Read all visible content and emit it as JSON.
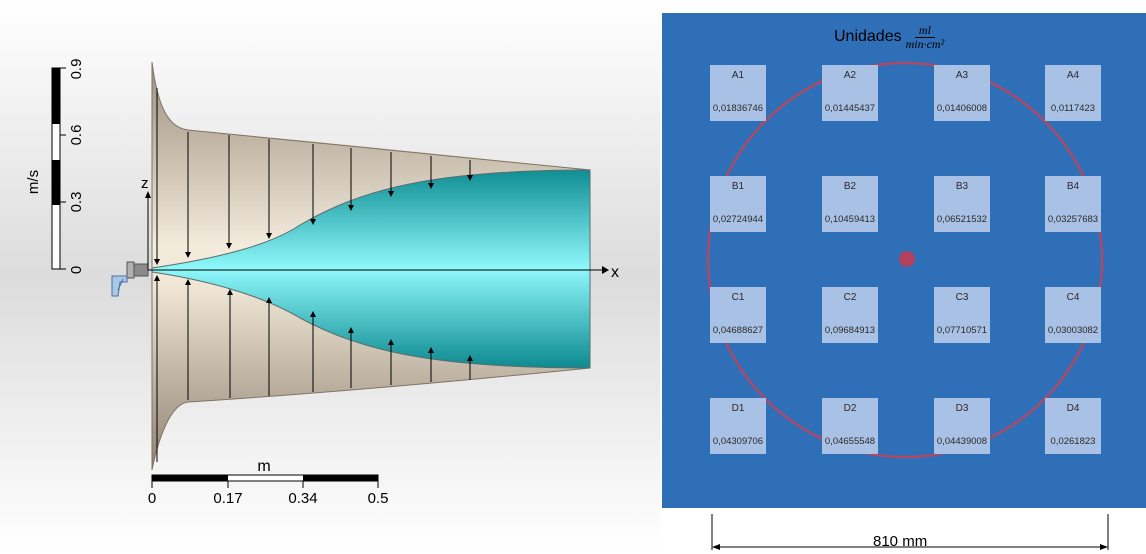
{
  "left_diagram": {
    "velocity_scale": {
      "unit_label": "m/s",
      "ticks": [
        "0",
        "0.3",
        "0.6",
        "0.9"
      ]
    },
    "length_scale": {
      "unit_label": "m",
      "ticks": [
        "0",
        "0.17",
        "0.34",
        "0.5"
      ]
    },
    "axes": {
      "x_label": "x",
      "z_label": "z"
    }
  },
  "right_diagram": {
    "units_prefix": "Unidades",
    "units_numerator": "ml",
    "units_denominator": "min·cm²",
    "dimension_label": "810 mm",
    "colors": {
      "background": "#2e6fb7",
      "square": "#a9c1e4",
      "circle": "#c0445a"
    },
    "grid": [
      [
        {
          "id": "A1",
          "value": "0,01836746"
        },
        {
          "id": "A2",
          "value": "0,01445437"
        },
        {
          "id": "A3",
          "value": "0,01406008"
        },
        {
          "id": "A4",
          "value": "0,0117423"
        }
      ],
      [
        {
          "id": "B1",
          "value": "0,02724944"
        },
        {
          "id": "B2",
          "value": "0,10459413"
        },
        {
          "id": "B3",
          "value": "0,06521532"
        },
        {
          "id": "B4",
          "value": "0,03257683"
        }
      ],
      [
        {
          "id": "C1",
          "value": "0,04688627"
        },
        {
          "id": "C2",
          "value": "0,09684913"
        },
        {
          "id": "C3",
          "value": "0,07710571"
        },
        {
          "id": "C4",
          "value": "0,03003082"
        }
      ],
      [
        {
          "id": "D1",
          "value": "0,04309706"
        },
        {
          "id": "D2",
          "value": "0,04655548"
        },
        {
          "id": "D3",
          "value": "0,04439008"
        },
        {
          "id": "D4",
          "value": "0,0261823"
        }
      ]
    ]
  }
}
